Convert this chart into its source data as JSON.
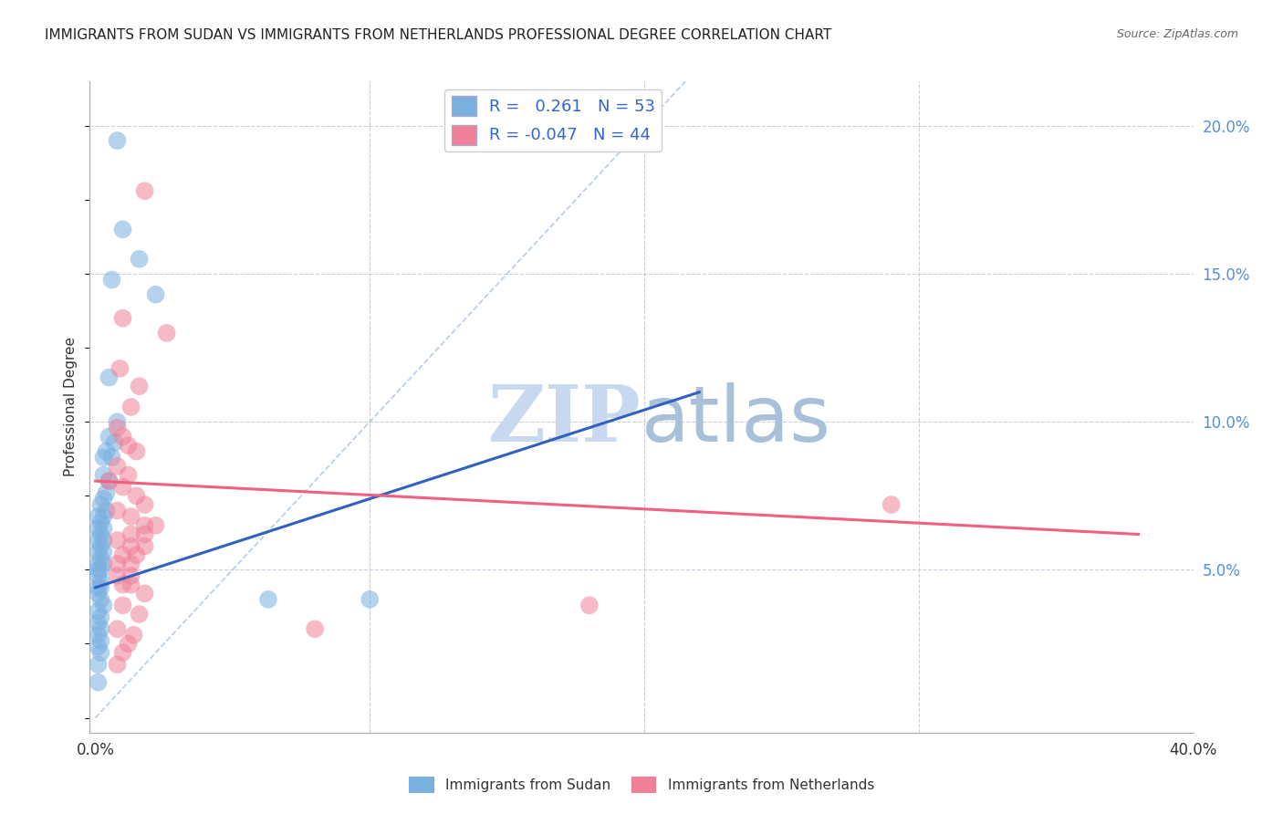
{
  "title": "IMMIGRANTS FROM SUDAN VS IMMIGRANTS FROM NETHERLANDS PROFESSIONAL DEGREE CORRELATION CHART",
  "source": "Source: ZipAtlas.com",
  "ylabel": "Professional Degree",
  "right_yticks": [
    "5.0%",
    "10.0%",
    "15.0%",
    "20.0%"
  ],
  "right_ytick_vals": [
    0.05,
    0.1,
    0.15,
    0.2
  ],
  "xlim": [
    -0.002,
    0.4
  ],
  "ylim": [
    -0.005,
    0.215
  ],
  "sudan_color": "#7ab0e0",
  "netherlands_color": "#f08098",
  "sudan_line_color": "#3060c0",
  "netherlands_line_color": "#f06080",
  "diagonal_color": "#9ab8d8",
  "sudan_R": 0.261,
  "sudan_N": 53,
  "netherlands_R": -0.047,
  "netherlands_N": 44,
  "sudan_points": [
    [
      0.008,
      0.195
    ],
    [
      0.01,
      0.165
    ],
    [
      0.016,
      0.155
    ],
    [
      0.006,
      0.148
    ],
    [
      0.022,
      0.143
    ],
    [
      0.005,
      0.115
    ],
    [
      0.008,
      0.1
    ],
    [
      0.005,
      0.095
    ],
    [
      0.007,
      0.093
    ],
    [
      0.004,
      0.09
    ],
    [
      0.003,
      0.088
    ],
    [
      0.006,
      0.088
    ],
    [
      0.003,
      0.082
    ],
    [
      0.005,
      0.08
    ],
    [
      0.004,
      0.076
    ],
    [
      0.003,
      0.074
    ],
    [
      0.002,
      0.072
    ],
    [
      0.004,
      0.07
    ],
    [
      0.001,
      0.068
    ],
    [
      0.003,
      0.068
    ],
    [
      0.002,
      0.066
    ],
    [
      0.001,
      0.064
    ],
    [
      0.003,
      0.064
    ],
    [
      0.002,
      0.062
    ],
    [
      0.001,
      0.06
    ],
    [
      0.003,
      0.06
    ],
    [
      0.002,
      0.058
    ],
    [
      0.001,
      0.056
    ],
    [
      0.003,
      0.056
    ],
    [
      0.002,
      0.054
    ],
    [
      0.001,
      0.052
    ],
    [
      0.003,
      0.052
    ],
    [
      0.001,
      0.05
    ],
    [
      0.002,
      0.05
    ],
    [
      0.001,
      0.048
    ],
    [
      0.002,
      0.046
    ],
    [
      0.001,
      0.044
    ],
    [
      0.002,
      0.044
    ],
    [
      0.001,
      0.042
    ],
    [
      0.002,
      0.04
    ],
    [
      0.003,
      0.038
    ],
    [
      0.001,
      0.036
    ],
    [
      0.002,
      0.034
    ],
    [
      0.001,
      0.032
    ],
    [
      0.002,
      0.03
    ],
    [
      0.001,
      0.028
    ],
    [
      0.002,
      0.026
    ],
    [
      0.001,
      0.024
    ],
    [
      0.002,
      0.022
    ],
    [
      0.001,
      0.018
    ],
    [
      0.001,
      0.012
    ],
    [
      0.063,
      0.04
    ],
    [
      0.1,
      0.04
    ]
  ],
  "netherlands_points": [
    [
      0.018,
      0.178
    ],
    [
      0.01,
      0.135
    ],
    [
      0.026,
      0.13
    ],
    [
      0.009,
      0.118
    ],
    [
      0.016,
      0.112
    ],
    [
      0.013,
      0.105
    ],
    [
      0.008,
      0.098
    ],
    [
      0.01,
      0.095
    ],
    [
      0.012,
      0.092
    ],
    [
      0.015,
      0.09
    ],
    [
      0.008,
      0.085
    ],
    [
      0.012,
      0.082
    ],
    [
      0.005,
      0.08
    ],
    [
      0.01,
      0.078
    ],
    [
      0.015,
      0.075
    ],
    [
      0.018,
      0.072
    ],
    [
      0.008,
      0.07
    ],
    [
      0.013,
      0.068
    ],
    [
      0.018,
      0.065
    ],
    [
      0.022,
      0.065
    ],
    [
      0.013,
      0.062
    ],
    [
      0.018,
      0.062
    ],
    [
      0.008,
      0.06
    ],
    [
      0.013,
      0.058
    ],
    [
      0.018,
      0.058
    ],
    [
      0.01,
      0.055
    ],
    [
      0.015,
      0.055
    ],
    [
      0.008,
      0.052
    ],
    [
      0.013,
      0.052
    ],
    [
      0.008,
      0.048
    ],
    [
      0.013,
      0.048
    ],
    [
      0.01,
      0.045
    ],
    [
      0.013,
      0.045
    ],
    [
      0.018,
      0.042
    ],
    [
      0.01,
      0.038
    ],
    [
      0.016,
      0.035
    ],
    [
      0.008,
      0.03
    ],
    [
      0.014,
      0.028
    ],
    [
      0.012,
      0.025
    ],
    [
      0.01,
      0.022
    ],
    [
      0.008,
      0.018
    ],
    [
      0.29,
      0.072
    ],
    [
      0.18,
      0.038
    ],
    [
      0.08,
      0.03
    ]
  ],
  "sudan_line": {
    "x0": 0.0,
    "y0": 0.044,
    "x1": 0.22,
    "y1": 0.11
  },
  "netherlands_line": {
    "x0": 0.0,
    "y0": 0.08,
    "x1": 0.38,
    "y1": 0.062
  },
  "legend_fontsize": 13,
  "title_fontsize": 11,
  "background_color": "#ffffff",
  "grid_color": "#ccccdd",
  "watermark_zip": "ZIP",
  "watermark_atlas": "atlas",
  "watermark_color_zip": "#c8d8ee",
  "watermark_color_atlas": "#a8c0d8",
  "watermark_fontsize": 62,
  "legend_blue_label": "R =   0.261   N = 53",
  "legend_pink_label": "R = -0.047   N = 44",
  "bottom_legend_sudan": "Immigrants from Sudan",
  "bottom_legend_netherlands": "Immigrants from Netherlands"
}
